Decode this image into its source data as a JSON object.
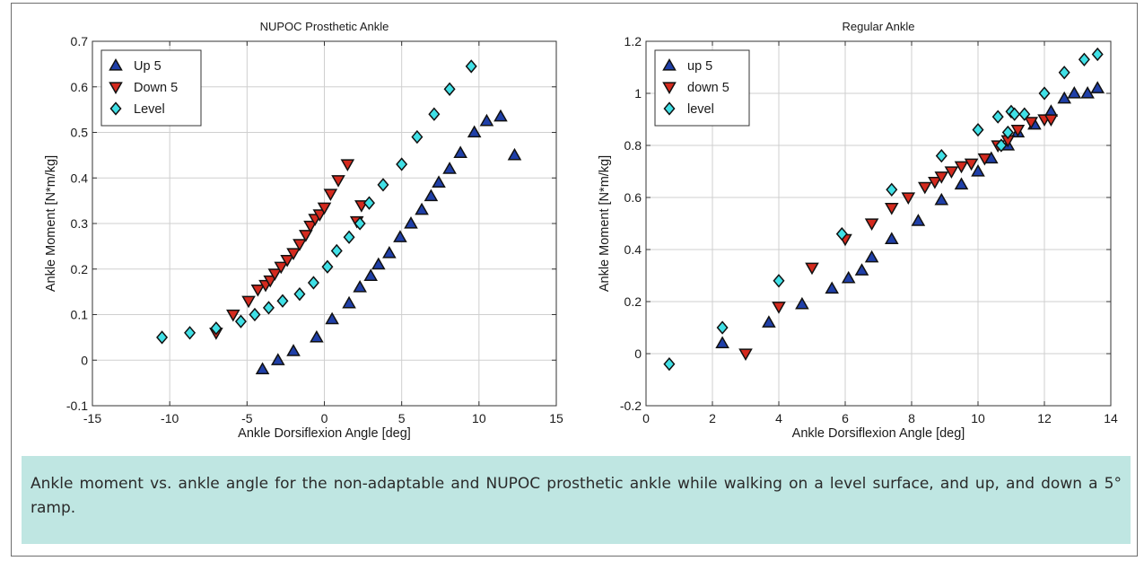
{
  "caption": "Ankle moment vs. ankle angle for the non-adaptable and NUPOC prosthetic ankle while walking on a level surface, and up, and down a 5° ramp.",
  "colors": {
    "up": "#1f3fa8",
    "down": "#d42a1e",
    "level": "#40e0e6",
    "caption_bg": "#bfe6e2"
  },
  "chart_data": [
    {
      "type": "scatter",
      "title": "NUPOC Prosthetic Ankle",
      "xlabel": "Ankle Dorsiflexion Angle [deg]",
      "ylabel": "Ankle Moment [N*m/kg]",
      "xlim": [
        -15,
        15
      ],
      "ylim": [
        -0.1,
        0.7
      ],
      "xticks": [
        -15,
        -10,
        -5,
        0,
        5,
        10,
        15
      ],
      "yticks": [
        -0.1,
        0,
        0.1,
        0.2,
        0.3,
        0.4,
        0.5,
        0.6,
        0.7
      ],
      "xtick_labels": [
        "-15",
        "-10",
        "-5",
        "0",
        "5",
        "10",
        "15"
      ],
      "ytick_labels": [
        "-0.1",
        "0",
        "0.1",
        "0.2",
        "0.3",
        "0.4",
        "0.5",
        "0.6",
        "0.7"
      ],
      "grid": true,
      "legend_position": "top-left",
      "series": [
        {
          "name": "Up 5",
          "marker": "triangle-up",
          "color": "#1f3fa8",
          "x": [
            -4.0,
            -3.0,
            -2.0,
            -0.5,
            0.5,
            1.6,
            2.3,
            3.0,
            3.5,
            4.2,
            4.9,
            5.6,
            6.3,
            6.9,
            7.4,
            8.1,
            8.8,
            9.7,
            10.5,
            11.4,
            12.3
          ],
          "y": [
            -0.02,
            0.0,
            0.02,
            0.05,
            0.09,
            0.125,
            0.16,
            0.185,
            0.21,
            0.235,
            0.27,
            0.3,
            0.33,
            0.36,
            0.39,
            0.42,
            0.455,
            0.5,
            0.525,
            0.535,
            0.45
          ]
        },
        {
          "name": "Down 5",
          "marker": "triangle-down",
          "color": "#d42a1e",
          "x": [
            -7.0,
            -5.9,
            -4.9,
            -4.3,
            -3.8,
            -3.5,
            -3.2,
            -2.8,
            -2.4,
            -2.0,
            -1.6,
            -1.2,
            -0.9,
            -0.6,
            -0.3,
            0.0,
            0.4,
            0.9,
            1.5,
            2.1,
            2.4
          ],
          "y": [
            0.06,
            0.1,
            0.13,
            0.155,
            0.165,
            0.175,
            0.19,
            0.205,
            0.22,
            0.235,
            0.255,
            0.275,
            0.295,
            0.31,
            0.32,
            0.335,
            0.365,
            0.395,
            0.43,
            0.305,
            0.34
          ]
        },
        {
          "name": "Level",
          "marker": "diamond",
          "color": "#40e0e6",
          "x": [
            -10.5,
            -8.7,
            -7.0,
            -5.4,
            -4.5,
            -3.6,
            -2.7,
            -1.6,
            -0.7,
            0.2,
            0.8,
            1.6,
            2.3,
            2.9,
            3.8,
            5.0,
            6.0,
            7.1,
            8.1,
            9.5
          ],
          "y": [
            0.05,
            0.06,
            0.07,
            0.085,
            0.1,
            0.115,
            0.13,
            0.145,
            0.17,
            0.205,
            0.24,
            0.27,
            0.3,
            0.345,
            0.385,
            0.43,
            0.49,
            0.54,
            0.595,
            0.645
          ]
        }
      ]
    },
    {
      "type": "scatter",
      "title": "Regular Ankle",
      "xlabel": "Ankle Dorsiflexion Angle [deg]",
      "ylabel": "Ankle Moment [N*m/kg]",
      "xlim": [
        0,
        14
      ],
      "ylim": [
        -0.2,
        1.2
      ],
      "xticks": [
        0,
        2,
        4,
        6,
        8,
        10,
        12,
        14
      ],
      "yticks": [
        -0.2,
        0,
        0.2,
        0.4,
        0.6,
        0.8,
        1,
        1.2
      ],
      "xtick_labels": [
        "0",
        "2",
        "4",
        "6",
        "8",
        "10",
        "12",
        "14"
      ],
      "ytick_labels": [
        "-0.2",
        "0",
        "0.2",
        "0.4",
        "0.6",
        "0.8",
        "1",
        "1.2"
      ],
      "grid": true,
      "legend_position": "top-left",
      "series": [
        {
          "name": "up 5",
          "marker": "triangle-up",
          "color": "#1f3fa8",
          "x": [
            2.3,
            3.7,
            4.7,
            5.6,
            6.1,
            6.5,
            6.8,
            7.4,
            8.2,
            8.9,
            9.5,
            10.0,
            10.4,
            10.9,
            11.2,
            11.7,
            12.2,
            12.6,
            12.9,
            13.3,
            13.6
          ],
          "y": [
            0.04,
            0.12,
            0.19,
            0.25,
            0.29,
            0.32,
            0.37,
            0.44,
            0.51,
            0.59,
            0.65,
            0.7,
            0.75,
            0.8,
            0.85,
            0.88,
            0.93,
            0.98,
            1.0,
            1.0,
            1.02
          ],
          "marker_note": ""
        },
        {
          "name": "down 5",
          "marker": "triangle-down",
          "color": "#d42a1e",
          "x": [
            3.0,
            4.0,
            5.0,
            6.0,
            6.8,
            7.4,
            7.9,
            8.4,
            8.7,
            8.9,
            9.2,
            9.5,
            9.8,
            10.2,
            10.6,
            10.9,
            11.2,
            11.6,
            12.0,
            12.2
          ],
          "y": [
            0.0,
            0.18,
            0.33,
            0.44,
            0.5,
            0.56,
            0.6,
            0.64,
            0.66,
            0.68,
            0.7,
            0.72,
            0.73,
            0.75,
            0.8,
            0.82,
            0.86,
            0.89,
            0.9,
            0.9
          ]
        },
        {
          "name": "level",
          "marker": "diamond",
          "color": "#40e0e6",
          "x": [
            0.7,
            2.3,
            4.0,
            5.9,
            7.4,
            8.9,
            10.0,
            10.6,
            10.7,
            10.9,
            11.0,
            11.1,
            11.4,
            12.0,
            12.6,
            13.2,
            13.6
          ],
          "y": [
            -0.04,
            0.1,
            0.28,
            0.46,
            0.63,
            0.76,
            0.86,
            0.91,
            0.8,
            0.85,
            0.93,
            0.92,
            0.92,
            1.0,
            1.08,
            1.13,
            1.15
          ]
        }
      ]
    }
  ]
}
